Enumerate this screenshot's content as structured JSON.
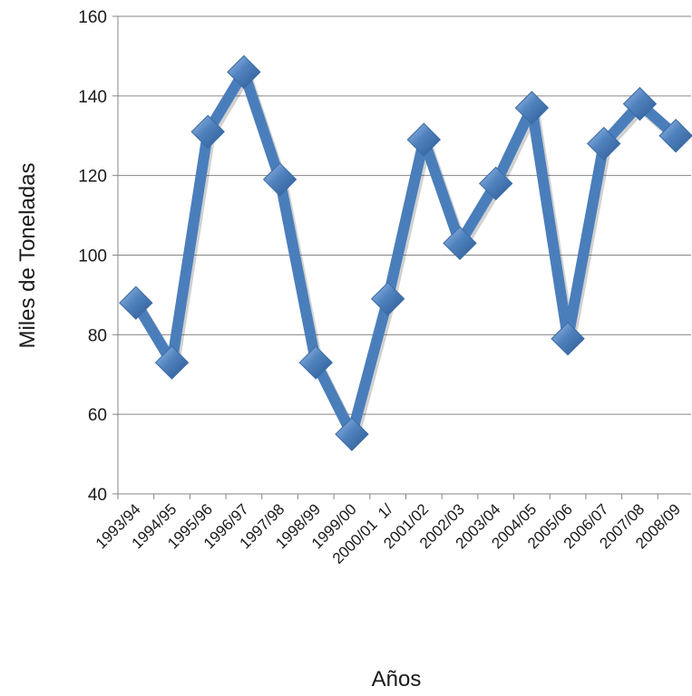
{
  "chart_data": {
    "type": "line",
    "title": "",
    "xlabel": "Años",
    "ylabel": "Miles de Toneladas",
    "categories": [
      "1993/94",
      "1994/95",
      "1995/96",
      "1996/97",
      "1997/98",
      "1998/99",
      "1999/00",
      "2000/01  1/",
      "2001/02",
      "2002/03",
      "2003/04",
      "2004/05",
      "2005/06",
      "2006/07",
      "2007/08",
      "2008/09"
    ],
    "series": [
      {
        "values": [
          88,
          73,
          131,
          146,
          119,
          73,
          55,
          89,
          129,
          103,
          118,
          137,
          79,
          128,
          138,
          130
        ]
      }
    ],
    "ylim": [
      40,
      160
    ],
    "yticks": [
      40,
      60,
      80,
      100,
      120,
      140,
      160
    ],
    "grid": true,
    "marker": "diamond",
    "colors": {
      "line": "#4a7ebb",
      "marker": "#4f81bd",
      "grid": "#868686",
      "axis": "#868686"
    }
  }
}
